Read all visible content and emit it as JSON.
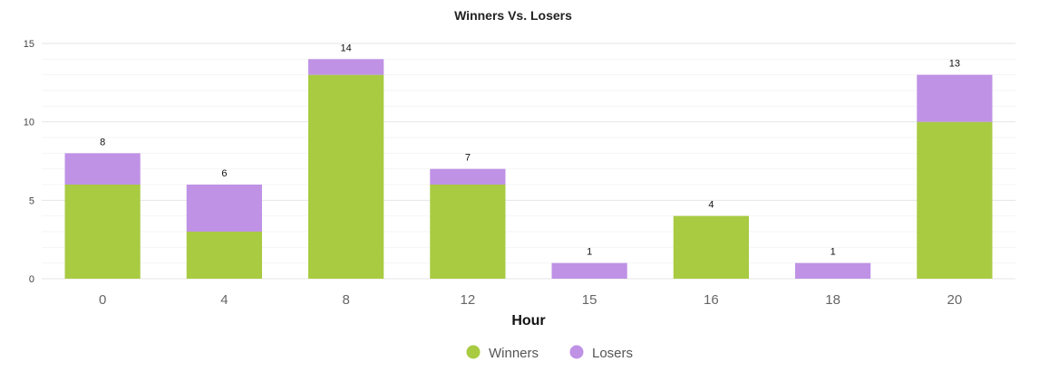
{
  "chart_data": {
    "type": "bar",
    "stacked": true,
    "title": "Winners Vs. Losers",
    "xlabel": "Hour",
    "ylabel": "",
    "ylim": [
      0,
      15
    ],
    "yticks": [
      "0",
      "5",
      "10",
      "15"
    ],
    "categories": [
      "0",
      "4",
      "8",
      "12",
      "15",
      "16",
      "18",
      "20"
    ],
    "series": [
      {
        "name": "Winners",
        "color": "#a8cb42",
        "values": [
          6,
          3,
          13,
          6,
          0,
          4,
          0,
          10
        ]
      },
      {
        "name": "Losers",
        "color": "#bf92e6",
        "values": [
          2,
          3,
          1,
          1,
          1,
          0,
          1,
          3
        ]
      }
    ],
    "totals": [
      "8",
      "6",
      "14",
      "7",
      "1",
      "4",
      "1",
      "13"
    ],
    "grid": true,
    "legend_position": "bottom-center"
  }
}
